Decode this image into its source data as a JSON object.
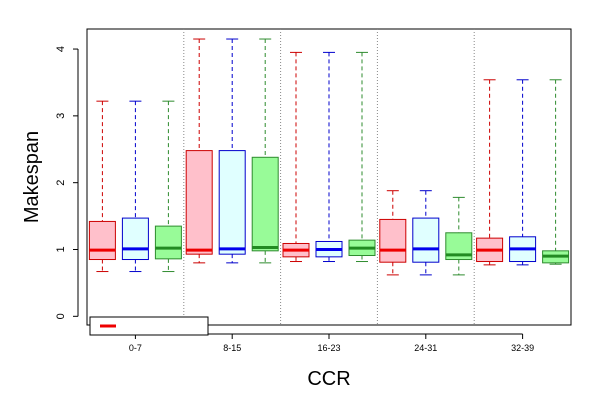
{
  "chart_data": {
    "type": "boxplot",
    "xlabel": "CCR",
    "ylabel": "Makespan",
    "ylim": [
      0,
      4.2
    ],
    "yticks": [
      0,
      1,
      2,
      3,
      4
    ],
    "categories": [
      "0-7",
      "8-15",
      "16-23",
      "24-31",
      "32-39"
    ],
    "series_colors": [
      {
        "fill": "#ffc0cb",
        "stroke": "#cc0000"
      },
      {
        "fill": "#e0ffff",
        "stroke": "#0000cc"
      },
      {
        "fill": "#98fb98",
        "stroke": "#2e8b2e"
      }
    ],
    "median_colors": [
      "#ee0000",
      "#0000ee",
      "#228b22"
    ],
    "groups": [
      {
        "category": "0-7",
        "boxes": [
          {
            "min": 0.67,
            "q1": 0.85,
            "median": 0.99,
            "q3": 1.42,
            "max": 3.22
          },
          {
            "min": 0.67,
            "q1": 0.85,
            "median": 1.01,
            "q3": 1.47,
            "max": 3.22
          },
          {
            "min": 0.67,
            "q1": 0.86,
            "median": 1.02,
            "q3": 1.35,
            "max": 3.22
          }
        ]
      },
      {
        "category": "8-15",
        "boxes": [
          {
            "min": 0.8,
            "q1": 0.93,
            "median": 0.99,
            "q3": 2.48,
            "max": 4.15
          },
          {
            "min": 0.8,
            "q1": 0.93,
            "median": 1.01,
            "q3": 2.48,
            "max": 4.15
          },
          {
            "min": 0.8,
            "q1": 0.98,
            "median": 1.03,
            "q3": 2.38,
            "max": 4.15
          }
        ]
      },
      {
        "category": "16-23",
        "boxes": [
          {
            "min": 0.82,
            "q1": 0.89,
            "median": 0.99,
            "q3": 1.09,
            "max": 3.95
          },
          {
            "min": 0.82,
            "q1": 0.89,
            "median": 1.0,
            "q3": 1.12,
            "max": 3.95
          },
          {
            "min": 0.82,
            "q1": 0.91,
            "median": 1.02,
            "q3": 1.14,
            "max": 3.95
          }
        ]
      },
      {
        "category": "24-31",
        "boxes": [
          {
            "min": 0.62,
            "q1": 0.81,
            "median": 0.99,
            "q3": 1.45,
            "max": 1.88
          },
          {
            "min": 0.62,
            "q1": 0.81,
            "median": 1.01,
            "q3": 1.47,
            "max": 1.88
          },
          {
            "min": 0.62,
            "q1": 0.85,
            "median": 0.92,
            "q3": 1.25,
            "max": 1.78
          }
        ]
      },
      {
        "category": "32-39",
        "boxes": [
          {
            "min": 0.77,
            "q1": 0.82,
            "median": 0.99,
            "q3": 1.17,
            "max": 3.54
          },
          {
            "min": 0.77,
            "q1": 0.82,
            "median": 1.01,
            "q3": 1.19,
            "max": 3.54
          },
          {
            "min": 0.78,
            "q1": 0.8,
            "median": 0.9,
            "q3": 0.98,
            "max": 3.54
          }
        ]
      }
    ],
    "grid": "vertical dotted separators between groups",
    "legend": {
      "placement": "bottom-left",
      "entries": [
        {
          "label": "",
          "color": "#ee0000"
        }
      ]
    }
  }
}
